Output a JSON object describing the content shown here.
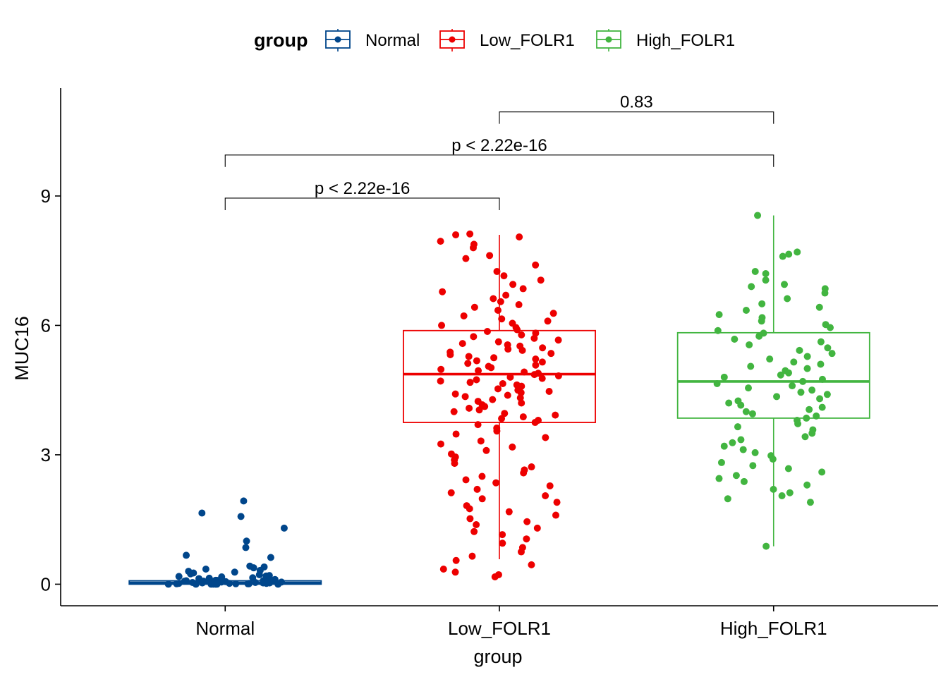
{
  "chart_data": {
    "type": "boxplot",
    "xlabel": "group",
    "ylabel": "MUC16",
    "ylim": [
      -0.5,
      11.5
    ],
    "yticks": [
      0,
      3,
      6,
      9
    ],
    "categories": [
      "Normal",
      "Low_FOLR1",
      "High_FOLR1"
    ],
    "legend": {
      "title": "group",
      "position": "top",
      "entries": [
        "Normal",
        "Low_FOLR1",
        "High_FOLR1"
      ]
    },
    "colors": {
      "Normal": "#00468B",
      "Low_FOLR1": "#ED0000",
      "High_FOLR1": "#42B540"
    },
    "series": [
      {
        "name": "Normal",
        "box": {
          "min": 0.0,
          "q1": 0.0,
          "median": 0.03,
          "q3": 0.08,
          "max": 0.12
        },
        "points": [
          1.93,
          1.65,
          1.57,
          1.3,
          1.0,
          0.85,
          0.67,
          0.62,
          0.42,
          0.4,
          0.38,
          0.35,
          0.32,
          0.3,
          0.28,
          0.26,
          0.24,
          0.22,
          0.2,
          0.19,
          0.18,
          0.17,
          0.15,
          0.14,
          0.13,
          0.12,
          0.11,
          0.1,
          0.09,
          0.09,
          0.08,
          0.08,
          0.07,
          0.07,
          0.06,
          0.06,
          0.05,
          0.05,
          0.04,
          0.04,
          0.04,
          0.03,
          0.03,
          0.03,
          0.02,
          0.02,
          0.02,
          0.02,
          0.01,
          0.01,
          0.01,
          0.01,
          0.01,
          0.0,
          0.0,
          0.0,
          0.0,
          0.0,
          0.0,
          0.0
        ]
      },
      {
        "name": "Low_FOLR1",
        "box": {
          "min": 0.58,
          "q1": 3.75,
          "median": 4.87,
          "q3": 5.88,
          "max": 8.1
        },
        "points": [
          8.12,
          8.1,
          8.05,
          7.95,
          7.88,
          7.8,
          7.62,
          7.55,
          7.4,
          7.25,
          7.15,
          7.05,
          6.95,
          6.85,
          6.78,
          6.7,
          6.62,
          6.55,
          6.48,
          6.42,
          6.35,
          6.28,
          6.22,
          6.15,
          6.1,
          6.05,
          6.0,
          5.95,
          5.9,
          5.86,
          5.82,
          5.78,
          5.74,
          5.7,
          5.66,
          5.62,
          5.58,
          5.55,
          5.52,
          5.48,
          5.45,
          5.42,
          5.38,
          5.35,
          5.32,
          5.28,
          5.25,
          5.22,
          5.18,
          5.15,
          5.12,
          5.08,
          5.05,
          5.02,
          4.98,
          4.95,
          4.92,
          4.89,
          4.86,
          4.83,
          4.8,
          4.77,
          4.74,
          4.71,
          4.68,
          4.65,
          4.62,
          4.59,
          4.56,
          4.53,
          4.5,
          4.47,
          4.44,
          4.41,
          4.38,
          4.35,
          4.32,
          4.28,
          4.24,
          4.2,
          4.16,
          4.12,
          4.08,
          4.04,
          4.0,
          3.96,
          3.92,
          3.88,
          3.84,
          3.8,
          3.75,
          3.7,
          3.62,
          3.55,
          3.48,
          3.4,
          3.32,
          3.25,
          3.18,
          3.1,
          3.02,
          2.95,
          2.88,
          2.8,
          2.72,
          2.65,
          2.58,
          2.5,
          2.42,
          2.35,
          2.28,
          2.2,
          2.12,
          2.05,
          1.98,
          1.9,
          1.82,
          1.75,
          1.68,
          1.6,
          1.52,
          1.45,
          1.38,
          1.3,
          1.22,
          1.15,
          1.05,
          0.95,
          0.85,
          0.75,
          0.65,
          0.55,
          0.45,
          0.35,
          0.28,
          0.22,
          0.17
        ]
      },
      {
        "name": "High_FOLR1",
        "box": {
          "min": 0.88,
          "q1": 3.85,
          "median": 4.7,
          "q3": 5.83,
          "max": 8.55
        },
        "points": [
          8.55,
          7.7,
          7.65,
          7.6,
          7.25,
          7.2,
          7.05,
          6.95,
          6.9,
          6.85,
          6.75,
          6.62,
          6.5,
          6.42,
          6.35,
          6.25,
          6.18,
          6.1,
          6.02,
          5.95,
          5.88,
          5.82,
          5.75,
          5.68,
          5.62,
          5.55,
          5.48,
          5.42,
          5.35,
          5.28,
          5.22,
          5.15,
          5.1,
          5.05,
          5.0,
          4.95,
          4.9,
          4.85,
          4.8,
          4.75,
          4.7,
          4.65,
          4.6,
          4.55,
          4.5,
          4.45,
          4.4,
          4.35,
          4.3,
          4.25,
          4.2,
          4.15,
          4.1,
          4.05,
          4.0,
          3.95,
          3.9,
          3.85,
          3.8,
          3.72,
          3.65,
          3.58,
          3.5,
          3.42,
          3.35,
          3.28,
          3.2,
          3.12,
          3.05,
          2.98,
          2.9,
          2.82,
          2.75,
          2.68,
          2.6,
          2.52,
          2.45,
          2.38,
          2.3,
          2.2,
          2.12,
          2.05,
          1.98,
          1.9,
          0.88
        ]
      }
    ],
    "comparisons": [
      {
        "from": "Normal",
        "to": "Low_FOLR1",
        "y": 8.95,
        "label": "p < 2.22e-16"
      },
      {
        "from": "Normal",
        "to": "High_FOLR1",
        "y": 9.95,
        "label": "p < 2.22e-16"
      },
      {
        "from": "Low_FOLR1",
        "to": "High_FOLR1",
        "y": 10.95,
        "label": "0.83"
      }
    ]
  }
}
